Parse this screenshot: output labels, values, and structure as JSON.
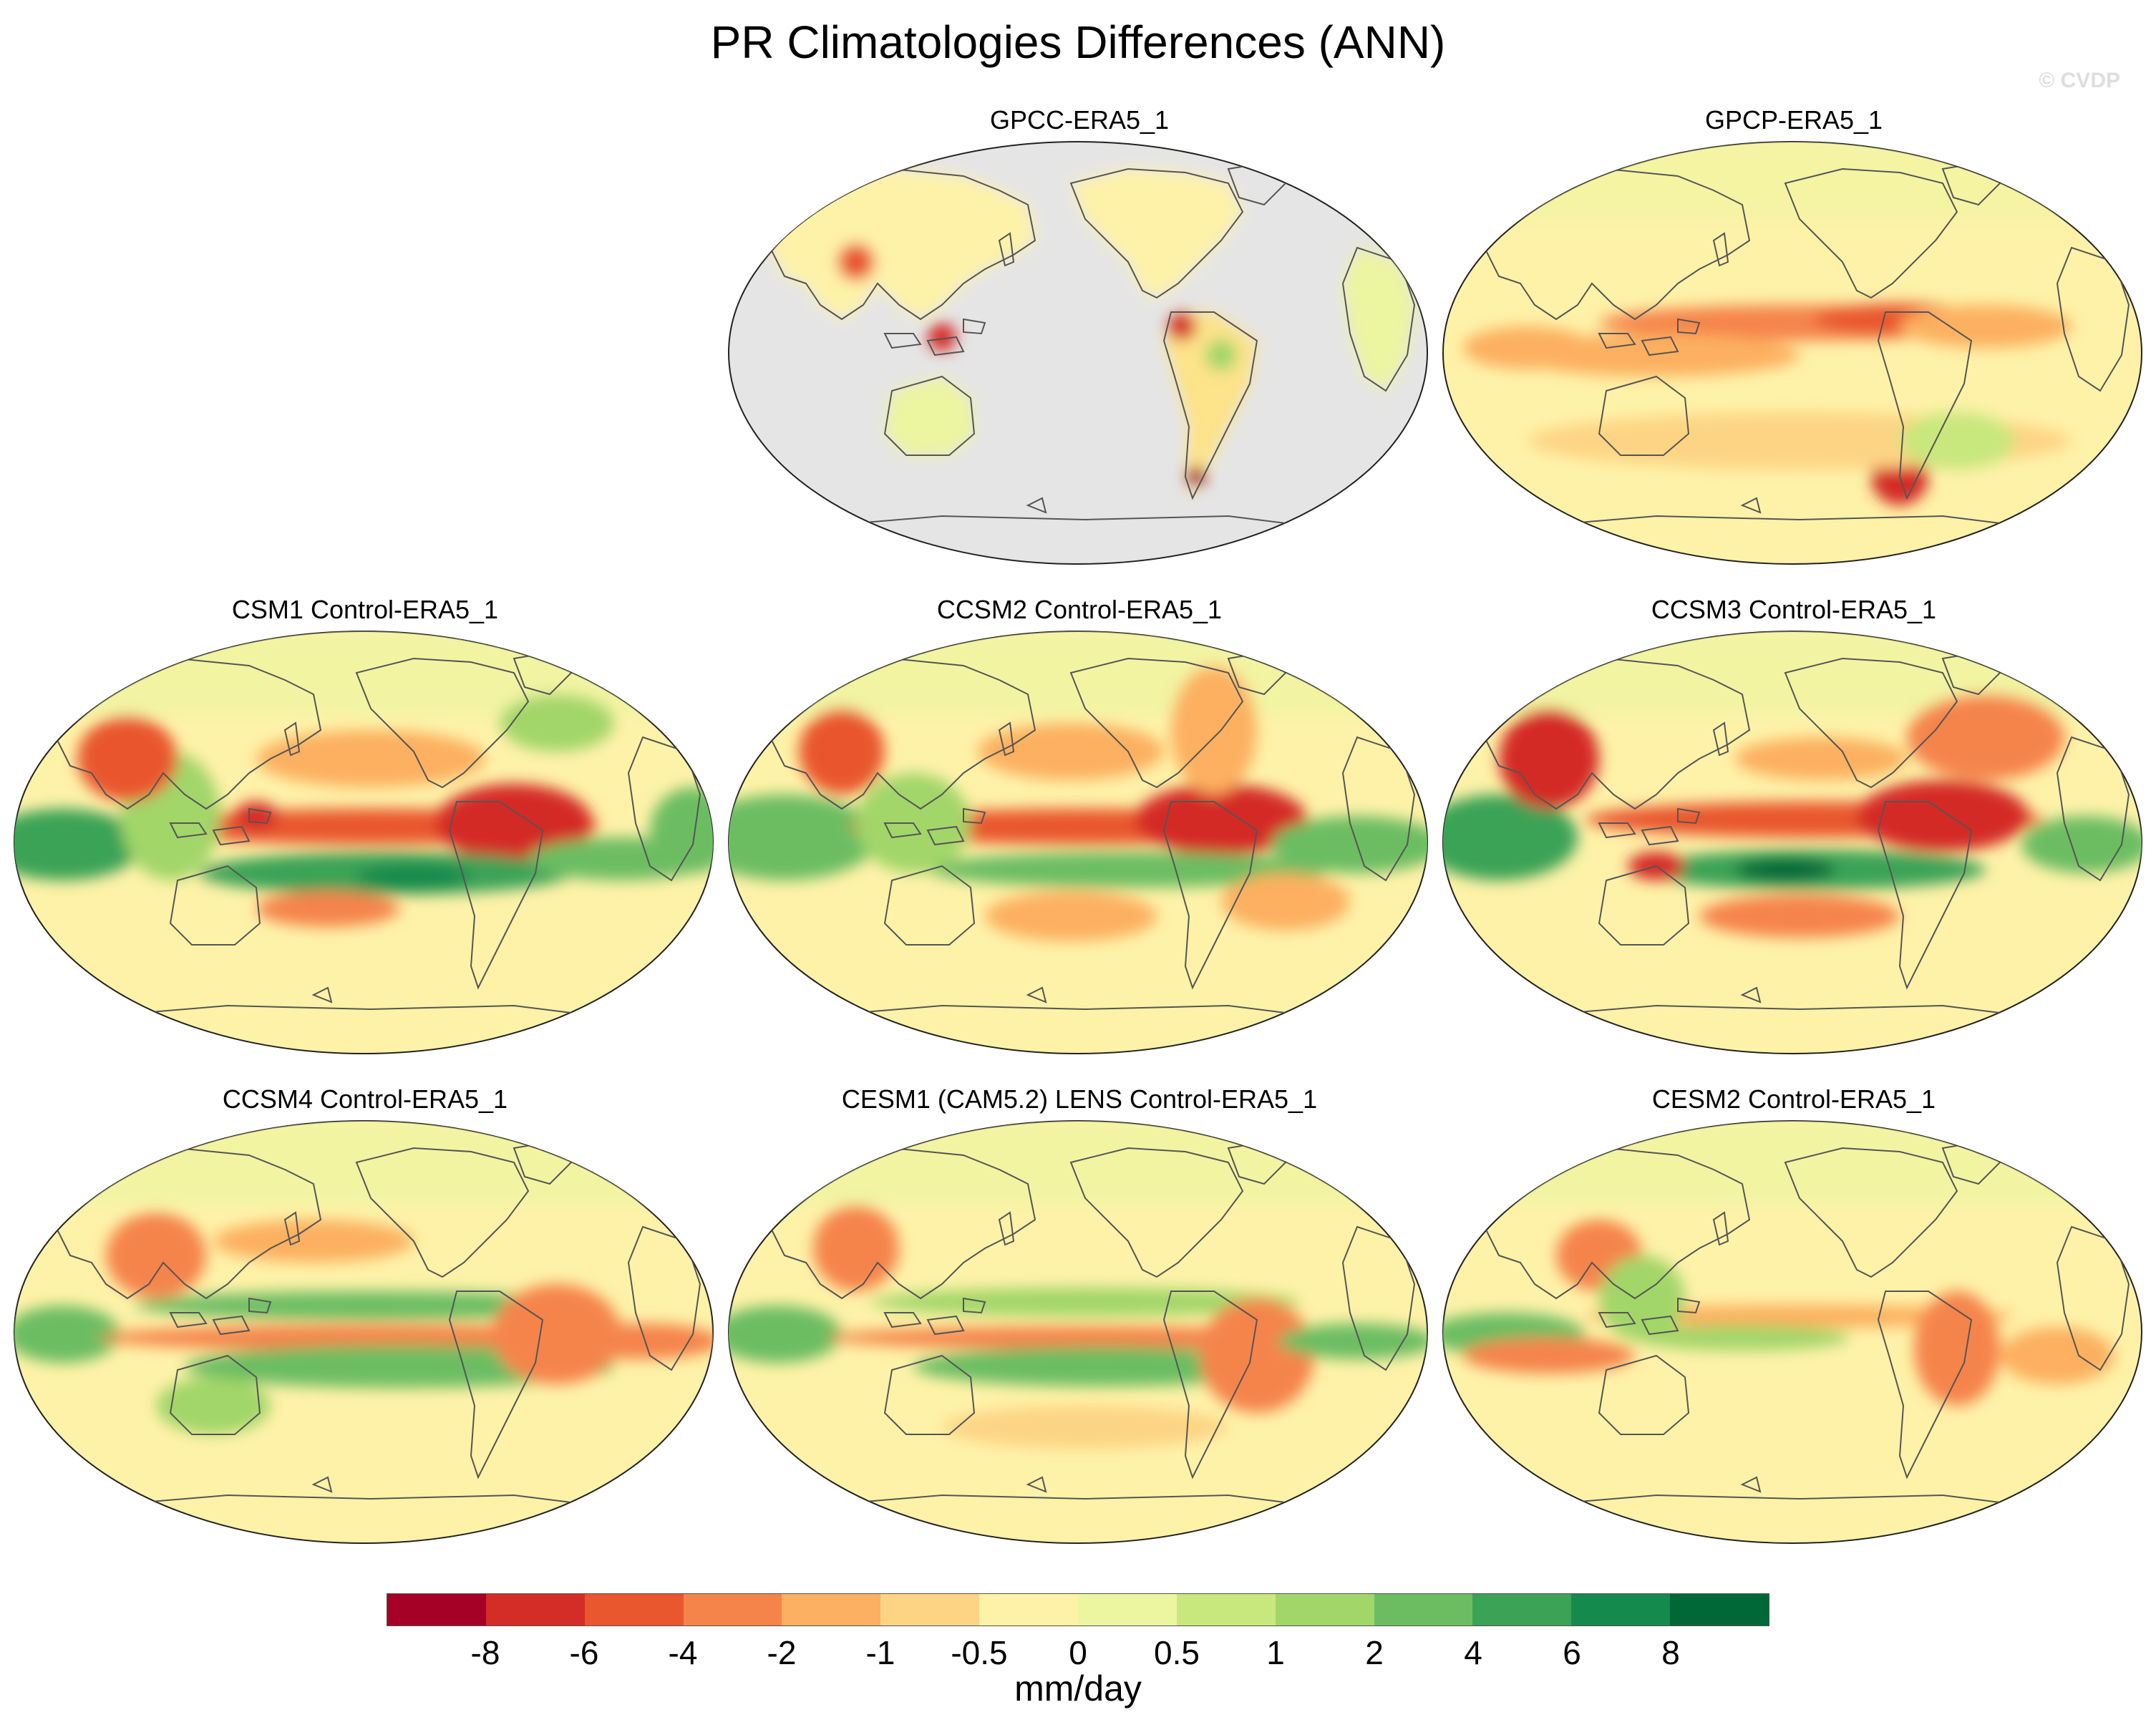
{
  "figure": {
    "title": "PR Climatologies Differences (ANN)",
    "watermark": "© CVDP"
  },
  "panels": [
    {
      "title": "GPCC-ERA5_1",
      "kind": "land_only"
    },
    {
      "title": "GPCP-ERA5_1",
      "kind": "observations"
    },
    {
      "title": "CSM1 Control-ERA5_1",
      "kind": "model"
    },
    {
      "title": "CCSM2 Control-ERA5_1",
      "kind": "model"
    },
    {
      "title": "CCSM3 Control-ERA5_1",
      "kind": "model"
    },
    {
      "title": "CCSM4 Control-ERA5_1",
      "kind": "model"
    },
    {
      "title": "CESM1 (CAM5.2) LENS Control-ERA5_1",
      "kind": "model"
    },
    {
      "title": "CESM2 Control-ERA5_1",
      "kind": "model"
    }
  ],
  "colorbar": {
    "unit": "mm/day",
    "tick_labels": [
      "-8",
      "-6",
      "-4",
      "-2",
      "-1",
      "-0.5",
      "0",
      "0.5",
      "1",
      "2",
      "4",
      "6",
      "8"
    ],
    "colors": [
      "#a50026",
      "#d42c27",
      "#e9572f",
      "#f5844b",
      "#fcb061",
      "#fdd484",
      "#fef2a8",
      "#ecf5a0",
      "#c8e77c",
      "#a2d669",
      "#6cbd62",
      "#3ba356",
      "#148a4c",
      "#006837"
    ],
    "map_background": "#fef2a8",
    "masked_ocean": "#e5e5e5",
    "coastline": "#555555"
  }
}
